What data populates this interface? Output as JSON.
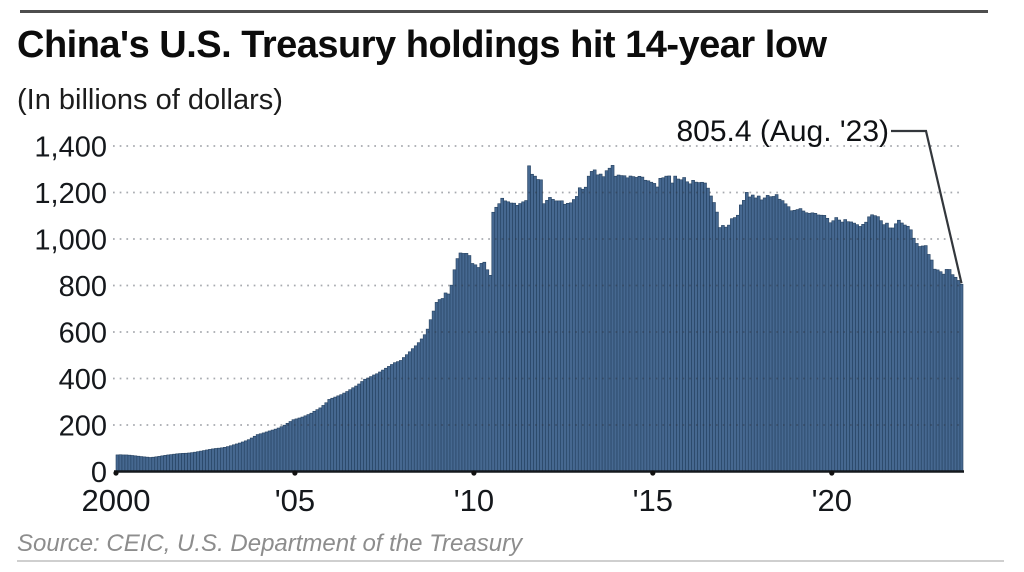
{
  "header": {
    "title": "China's U.S. Treasury holdings hit 14-year low",
    "subtitle": "(In billions of dollars)"
  },
  "source": {
    "text": "Source: CEIC, U.S. Department of the Treasury"
  },
  "chart_data": {
    "type": "bar",
    "title": "China's U.S. Treasury holdings hit 14-year low",
    "units": "billions of dollars",
    "frequency": "monthly",
    "x_start": "2000-01",
    "x_end": "2023-08",
    "ylim": [
      0,
      1400
    ],
    "grid": "horizontal dotted",
    "legend": "none",
    "bar_color": "#466890",
    "bar_edge_color": "#24405f",
    "y_ticks": [
      {
        "value": 0,
        "label": "0"
      },
      {
        "value": 200,
        "label": "200"
      },
      {
        "value": 400,
        "label": "400"
      },
      {
        "value": 600,
        "label": "600"
      },
      {
        "value": 800,
        "label": "800"
      },
      {
        "value": 1000,
        "label": "1,000"
      },
      {
        "value": 1200,
        "label": "1,200"
      },
      {
        "value": 1400,
        "label": "1,400"
      }
    ],
    "x_ticks": [
      {
        "label": "2000",
        "month": 0
      },
      {
        "label": "'05",
        "month": 60
      },
      {
        "label": "'10",
        "month": 120
      },
      {
        "label": "'15",
        "month": 180
      },
      {
        "label": "'20",
        "month": 240
      }
    ],
    "annotation": {
      "text": "805.4 (Aug. '23)",
      "value": 805.4,
      "month": "2023-08"
    },
    "values": [
      71.4,
      72.1,
      71.3,
      71.2,
      70.3,
      68.9,
      67.4,
      65.8,
      64.3,
      62.9,
      61.7,
      60.3,
      61.5,
      63.2,
      65.1,
      67.3,
      69.4,
      71.3,
      72.8,
      74.5,
      76.1,
      77.3,
      78.2,
      78.6,
      79.7,
      81.2,
      83.1,
      85.4,
      87.8,
      90.2,
      92.7,
      95.1,
      97.3,
      99.1,
      100.4,
      101.9,
      104.0,
      107.2,
      110.8,
      114.9,
      118.6,
      122.5,
      127.0,
      131.8,
      136.9,
      144.1,
      151.6,
      159.0,
      162.3,
      166.0,
      170.1,
      174.4,
      178.2,
      182.3,
      187.0,
      192.8,
      199.2,
      207.3,
      215.1,
      222.9,
      226.3,
      230.1,
      234.2,
      239.5,
      245.0,
      250.8,
      259.1,
      266.3,
      273.6,
      284.2,
      295.8,
      310.0,
      315.2,
      320.1,
      325.4,
      330.6,
      337.3,
      344.1,
      352.0,
      360.2,
      367.6,
      376.4,
      387.1,
      396.9,
      402.1,
      408.3,
      415.2,
      420.4,
      428.1,
      436.3,
      444.2,
      452.1,
      460.3,
      468.2,
      472.6,
      477.6,
      490.2,
      502.4,
      515.0,
      528.3,
      540.6,
      554.2,
      570.1,
      588.3,
      612.4,
      652.9,
      690.1,
      727.4,
      739.6,
      744.2,
      767.9,
      763.5,
      801.5,
      867.7,
      915.8,
      939.9,
      938.0,
      938.3,
      929.0,
      894.8,
      889.0,
      877.5,
      895.2,
      900.2,
      867.7,
      843.7,
      1115.1,
      1136.5,
      1151.9,
      1175.3,
      1164.1,
      1160.1,
      1154.7,
      1154.1,
      1144.9,
      1152.5,
      1159.8,
      1165.5,
      1314.9,
      1278.5,
      1270.3,
      1256.0,
      1254.6,
      1151.9,
      1166.2,
      1178.9,
      1170.5,
      1164.0,
      1164.0,
      1164.3,
      1149.5,
      1153.6,
      1155.6,
      1169.9,
      1183.1,
      1220.4,
      1214.2,
      1222.9,
      1270.3,
      1290.8,
      1297.3,
      1275.8,
      1279.3,
      1268.1,
      1293.8,
      1304.5,
      1316.7,
      1270.1,
      1275.2,
      1272.9,
      1272.1,
      1263.2,
      1270.9,
      1268.4,
      1264.9,
      1269.7,
      1266.3,
      1252.7,
      1250.3,
      1244.3,
      1239.1,
      1223.7,
      1261.0,
      1263.5,
      1270.3,
      1271.2,
      1240.8,
      1270.5,
      1258.0,
      1254.8,
      1264.5,
      1246.1,
      1237.3,
      1252.3,
      1244.6,
      1242.8,
      1244.0,
      1240.8,
      1218.8,
      1185.1,
      1157.0,
      1115.7,
      1049.3,
      1058.4,
      1051.1,
      1059.7,
      1087.5,
      1092.2,
      1102.2,
      1146.5,
      1166.1,
      1200.5,
      1180.8,
      1189.2,
      1176.6,
      1184.9,
      1168.2,
      1176.7,
      1187.7,
      1181.9,
      1183.1,
      1191.2,
      1171.0,
      1165.1,
      1151.4,
      1138.9,
      1121.4,
      1123.5,
      1126.7,
      1130.9,
      1120.5,
      1113.0,
      1110.2,
      1112.5,
      1110.4,
      1103.5,
      1102.4,
      1101.7,
      1089.1,
      1069.9,
      1078.6,
      1092.3,
      1081.6,
      1072.8,
      1083.7,
      1074.4,
      1073.4,
      1068.3,
      1061.7,
      1054.0,
      1063.0,
      1072.3,
      1095.4,
      1104.2,
      1100.4,
      1096.1,
      1078.9,
      1061.7,
      1068.3,
      1047.6,
      1047.5,
      1065.4,
      1080.8,
      1068.9,
      1060.1,
      1054.8,
      1039.6,
      1003.4,
      980.8,
      967.8,
      970.0,
      971.8,
      933.6,
      909.6,
      870.2,
      867.1,
      859.4,
      848.8,
      869.3,
      868.9,
      846.7,
      835.4,
      821.8,
      805.4
    ]
  }
}
